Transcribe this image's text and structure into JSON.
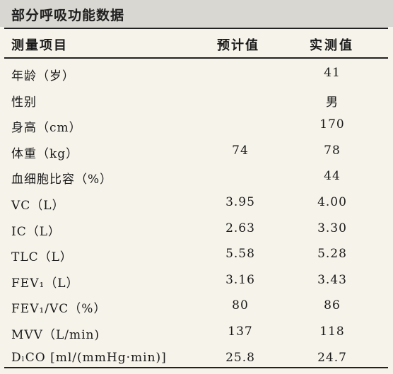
{
  "title": "部分呼吸功能数据",
  "headers": {
    "item": "测量项目",
    "predicted": "预计值",
    "measured": "实测值"
  },
  "rows": [
    {
      "label": "年龄（岁）",
      "predicted": "",
      "measured": "41"
    },
    {
      "label": "性别",
      "predicted": "",
      "measured": "男"
    },
    {
      "label": "身高（cm）",
      "predicted": "",
      "measured": "170"
    },
    {
      "label": "体重（kg）",
      "predicted": "74",
      "measured": "78"
    },
    {
      "label": "血细胞比容（%）",
      "predicted": "",
      "measured": "44"
    },
    {
      "label": "VC（L）",
      "predicted": "3.95",
      "measured": "4.00"
    },
    {
      "label": "IC（L）",
      "predicted": "2.63",
      "measured": "3.30"
    },
    {
      "label": "TLC（L）",
      "predicted": "5.58",
      "measured": "5.28"
    },
    {
      "label": "FEV₁（L）",
      "predicted": "3.16",
      "measured": "3.43"
    },
    {
      "label": "FEV₁/VC（%）",
      "predicted": "80",
      "measured": "86"
    },
    {
      "label": "MVV（L/min)",
      "predicted": "137",
      "measured": "118"
    },
    {
      "label": "DₗCO [ml/(mmHg·min)]",
      "predicted": "25.8",
      "measured": "24.7"
    }
  ]
}
